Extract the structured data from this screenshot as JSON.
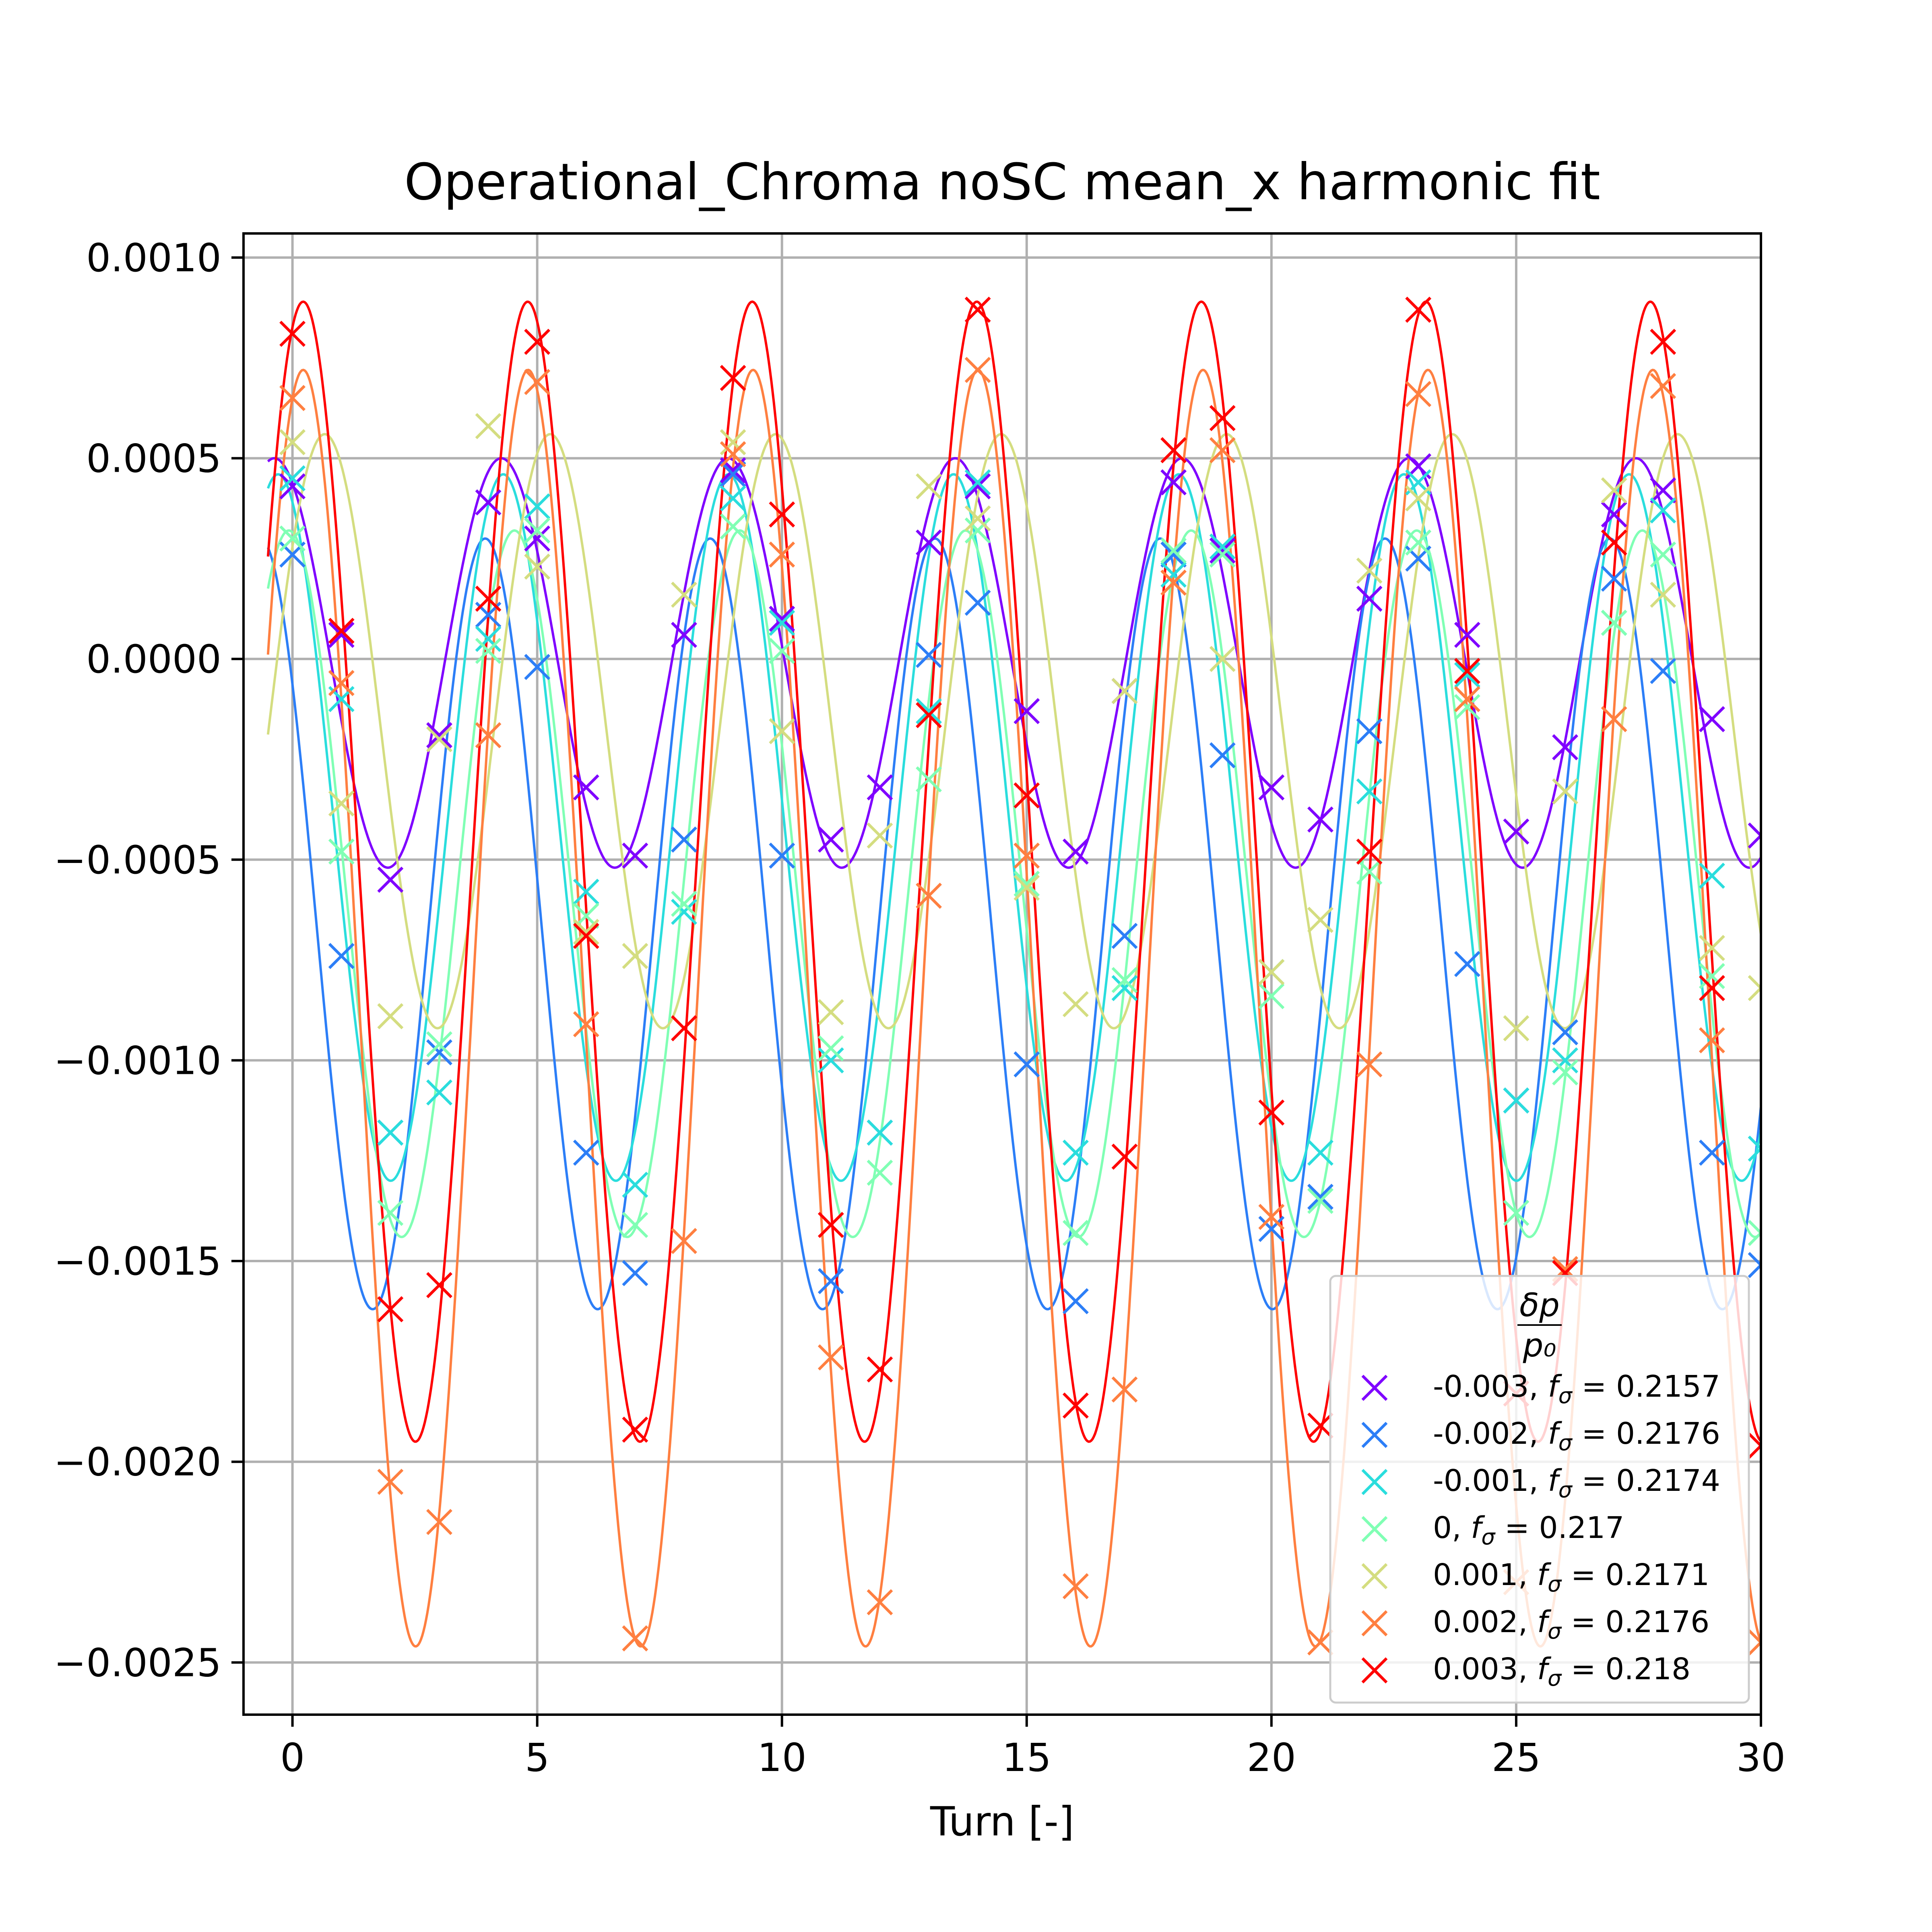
{
  "chart_data": {
    "type": "scatter",
    "title": "Operational_Chroma noSC mean_x harmonic fit",
    "xlabel": "Turn [-]",
    "ylabel": "",
    "xlim": [
      -1,
      30
    ],
    "ylim": [
      -0.00263,
      0.00106
    ],
    "xticks": [
      0,
      5,
      10,
      15,
      20,
      25,
      30
    ],
    "xtick_labels": [
      "0",
      "5",
      "10",
      "15",
      "20",
      "25",
      "30"
    ],
    "yticks": [
      0.001,
      0.0005,
      0.0,
      -0.0005,
      -0.001,
      -0.0015,
      -0.002,
      -0.0025
    ],
    "ytick_labels": [
      "0.0010",
      "0.0005",
      "0.0000",
      "−0.0005",
      "−0.0010",
      "−0.0015",
      "−0.0020",
      "−0.0025"
    ],
    "grid": true,
    "legend": {
      "placement": "lower-right",
      "title_numerator": "δp",
      "title_denominator": "p₀"
    },
    "marker": "x",
    "series": [
      {
        "name": "-0.003, fσ = 0.2157",
        "label_prefix": "-0.003, ",
        "label_value": " = 0.2157",
        "color": "#7f00ff",
        "fit": {
          "offset": -1e-05,
          "amplitude": 0.00051,
          "frequency": 0.2157,
          "phase": 0.5
        },
        "x": [
          0,
          1,
          2,
          3,
          4,
          5,
          6,
          7,
          8,
          9,
          10,
          11,
          12,
          13,
          14,
          15,
          16,
          17,
          18,
          19,
          20,
          21,
          22,
          23,
          24,
          25,
          26,
          27,
          28,
          29,
          30
        ],
        "y": [
          0.00043,
          6e-05,
          -0.00055,
          -0.00019,
          0.00039,
          0.0003,
          -0.00032,
          -0.00049,
          6e-05,
          0.00047,
          0.0001,
          -0.00045,
          -0.00032,
          0.00029,
          0.00043,
          -0.00013,
          -0.00048,
          -8e-05,
          0.00044,
          0.00027,
          -0.00032,
          -0.0004,
          0.00015,
          0.00048,
          6e-05,
          -0.00043,
          -0.00022,
          0.00036,
          0.00042,
          -0.00015,
          -0.00044
        ]
      },
      {
        "name": "-0.002, fσ = 0.2176",
        "label_prefix": "-0.002, ",
        "label_value": " = 0.2176",
        "color": "#2c7ef7",
        "fit": {
          "offset": -0.00066,
          "amplitude": 0.00096,
          "frequency": 0.2176,
          "phase": 0.9
        },
        "x": [
          0,
          1,
          2,
          3,
          4,
          5,
          6,
          7,
          8,
          9,
          10,
          11,
          12,
          13,
          14,
          15,
          16,
          17,
          18,
          19,
          20,
          21,
          22,
          23,
          24,
          25,
          26,
          27,
          28,
          29,
          30
        ],
        "y": [
          0.00026,
          -0.00074,
          -0.00118,
          -0.00098,
          0.00011,
          -2e-05,
          -0.00123,
          -0.00153,
          -0.00045,
          0.00046,
          -0.00049,
          -0.00155,
          -0.00118,
          1e-05,
          0.00014,
          -0.00101,
          -0.0016,
          -0.00069,
          0.00026,
          -0.00024,
          -0.00142,
          -0.00134,
          -0.00018,
          0.00025,
          -0.00076,
          -0.0011,
          -0.00093,
          0.0002,
          -3e-05,
          -0.00123,
          -0.00151
        ]
      },
      {
        "name": "-0.001, fσ = 0.2174",
        "label_prefix": "-0.001, ",
        "label_value": " = 0.2174",
        "color": "#2adddd",
        "fit": {
          "offset": -0.00042,
          "amplitude": 0.00088,
          "frequency": 0.2174,
          "phase": 0.4
        },
        "x": [
          0,
          1,
          2,
          3,
          4,
          5,
          6,
          7,
          8,
          9,
          10,
          11,
          12,
          13,
          14,
          15,
          16,
          17,
          18,
          19,
          20,
          21,
          22,
          23,
          24,
          25,
          26,
          27,
          28,
          29,
          30
        ],
        "y": [
          0.00045,
          -0.0001,
          -0.00118,
          -0.00108,
          5e-05,
          0.00038,
          -0.00058,
          -0.00131,
          -0.00063,
          0.0004,
          9e-05,
          -0.001,
          -0.00118,
          -0.00013,
          0.00044,
          -0.00034,
          -0.00123,
          -0.00082,
          0.00021,
          0.00028,
          -0.00078,
          -0.00123,
          -0.00033,
          0.00044,
          -4e-05,
          -0.0011,
          -0.001,
          9e-05,
          0.00037,
          -0.00054,
          -0.00122
        ]
      },
      {
        "name": "0, fσ = 0.217",
        "label_prefix": "0, ",
        "label_value": " = 0.217",
        "color": "#80ffb4",
        "fit": {
          "offset": -0.00056,
          "amplitude": 0.00088,
          "frequency": 0.217,
          "phase": 0.1
        },
        "x": [
          0,
          1,
          2,
          3,
          4,
          5,
          6,
          7,
          8,
          9,
          10,
          11,
          12,
          13,
          14,
          15,
          16,
          17,
          18,
          19,
          20,
          21,
          22,
          23,
          24,
          25,
          26,
          27,
          28,
          29,
          30
        ],
        "y": [
          0.0003,
          -0.00048,
          -0.00138,
          -0.00096,
          2e-05,
          0.00032,
          -0.00064,
          -0.00141,
          -0.00061,
          0.00033,
          2e-05,
          -0.00097,
          -0.00128,
          -0.0003,
          0.00032,
          -0.00056,
          -0.00143,
          -0.0008,
          0.00027,
          0.00026,
          -0.00084,
          -0.00135,
          -0.00053,
          0.00029,
          -0.00012,
          -0.00138,
          -0.00103,
          9e-05,
          0.00026,
          -0.00079,
          -0.00143
        ]
      },
      {
        "name": "0.001, fσ = 0.2171",
        "label_prefix": "0.001, ",
        "label_value": " = 0.2171",
        "color": "#d4dd80",
        "fit": {
          "offset": -0.00018,
          "amplitude": 0.00074,
          "frequency": 0.2171,
          "phase": -0.9
        },
        "x": [
          0,
          1,
          2,
          3,
          4,
          5,
          6,
          7,
          8,
          9,
          10,
          11,
          12,
          13,
          14,
          15,
          16,
          17,
          18,
          19,
          20,
          21,
          22,
          23,
          24,
          25,
          26,
          27,
          28,
          29,
          30
        ],
        "y": [
          0.00054,
          -0.00036,
          -0.00089,
          -0.0002,
          0.00058,
          0.00023,
          -0.00068,
          -0.00074,
          0.00016,
          0.00054,
          -0.00018,
          -0.00088,
          -0.00044,
          0.00043,
          0.00035,
          -0.00057,
          -0.00086,
          -8e-05,
          0.00052,
          0.0,
          -0.00078,
          -0.00065,
          0.00022,
          0.0004,
          -0.0001,
          -0.00092,
          -0.00033,
          0.00042,
          0.00016,
          -0.00072,
          -0.00082
        ]
      },
      {
        "name": "0.002, fσ = 0.2176",
        "label_prefix": "0.002, ",
        "label_value": " = 0.2176",
        "color": "#ff7f40",
        "fit": {
          "offset": -0.00087,
          "amplitude": 0.00159,
          "frequency": 0.2176,
          "phase": -0.3
        },
        "x": [
          0,
          1,
          2,
          3,
          4,
          5,
          6,
          7,
          8,
          9,
          10,
          11,
          12,
          13,
          14,
          15,
          16,
          17,
          18,
          19,
          20,
          21,
          22,
          23,
          24,
          25,
          26,
          27,
          28,
          29,
          30
        ],
        "y": [
          0.00065,
          -6e-05,
          -0.00205,
          -0.00215,
          -0.00019,
          0.00069,
          -0.00091,
          -0.00244,
          -0.00145,
          0.00051,
          0.00026,
          -0.00174,
          -0.00235,
          -0.00059,
          0.00072,
          -0.00049,
          -0.00231,
          -0.00182,
          0.00019,
          0.00052,
          -0.00139,
          -0.00245,
          -0.00101,
          0.00066,
          -0.0001,
          -0.0023,
          -0.00152,
          -0.00015,
          0.00068,
          -0.00095,
          -0.00245
        ]
      },
      {
        "name": "0.003, fσ = 0.218",
        "label_prefix": "0.003, ",
        "label_value": " = 0.218",
        "color": "#ff0000",
        "fit": {
          "offset": -0.00053,
          "amplitude": 0.00142,
          "frequency": 0.218,
          "phase": -0.3
        },
        "x": [
          0,
          1,
          2,
          3,
          4,
          5,
          6,
          7,
          8,
          9,
          10,
          11,
          12,
          13,
          14,
          15,
          16,
          17,
          18,
          19,
          20,
          21,
          22,
          23,
          24,
          25,
          26,
          27,
          28,
          29,
          30
        ],
        "y": [
          0.00081,
          7e-05,
          -0.00162,
          -0.00156,
          0.00015,
          0.00079,
          -0.00069,
          -0.00192,
          -0.00092,
          0.0007,
          0.00036,
          -0.00141,
          -0.00177,
          -0.00014,
          0.00087,
          -0.00034,
          -0.00186,
          -0.00124,
          0.00052,
          0.0006,
          -0.00113,
          -0.00191,
          -0.00048,
          0.00087,
          -3e-05,
          -0.00183,
          -0.00153,
          0.00029,
          0.00079,
          -0.00082,
          -0.00196
        ]
      }
    ]
  }
}
